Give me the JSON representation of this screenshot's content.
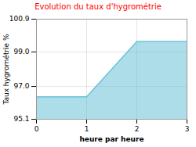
{
  "chart_data": {
    "type": "area",
    "title": "Evolution du taux d'hygrométrie",
    "xlabel": "heure par heure",
    "ylabel": "Taux hygrométrie %",
    "x": [
      0,
      1,
      2,
      3
    ],
    "values": [
      96.4,
      96.4,
      99.6,
      99.6
    ],
    "color": "#5bbcd4",
    "xlim": [
      0,
      3
    ],
    "ylim": [
      95.1,
      100.9
    ],
    "xticks": [
      0,
      1,
      2,
      3
    ],
    "yticks": [
      95.1,
      {
        "value": 97.0,
        "label": "97.0"
      },
      {
        "value": 99.0,
        "label": "99.0"
      },
      100.9
    ],
    "grid": true
  }
}
